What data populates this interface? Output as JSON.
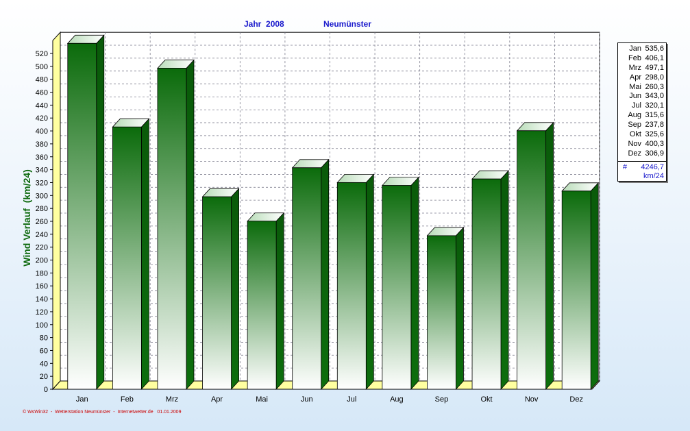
{
  "header": {
    "year_label": "Jahr  2008",
    "station": "Neumünster"
  },
  "footer_text": "© WsWin32  -  Wetterstation Neumünster  -  Internetwetter.de   01.01.2009",
  "legend": {
    "total_symbol": "#",
    "total_value": "4246,7",
    "unit": "km/24",
    "rows": [
      {
        "month": "Jan",
        "value": "535,6"
      },
      {
        "month": "Feb",
        "value": "406,1"
      },
      {
        "month": "Mrz",
        "value": "497,1"
      },
      {
        "month": "Apr",
        "value": "298,0"
      },
      {
        "month": "Mai",
        "value": "260,3"
      },
      {
        "month": "Jun",
        "value": "343,0"
      },
      {
        "month": "Jul",
        "value": "320,1"
      },
      {
        "month": "Aug",
        "value": "315,6"
      },
      {
        "month": "Sep",
        "value": "237,8"
      },
      {
        "month": "Okt",
        "value": "325,6"
      },
      {
        "month": "Nov",
        "value": "400,3"
      },
      {
        "month": "Dez",
        "value": "306,9"
      }
    ]
  },
  "chart_data": {
    "type": "bar",
    "title": "Jahr  2008   Neumünster",
    "xlabel": "",
    "ylabel": "Wind Verlauf  (km/24)",
    "categories": [
      "Jan",
      "Feb",
      "Mrz",
      "Apr",
      "Mai",
      "Jun",
      "Jul",
      "Aug",
      "Sep",
      "Okt",
      "Nov",
      "Dez"
    ],
    "values": [
      535.6,
      406.1,
      497.1,
      298.0,
      260.3,
      343.0,
      320.1,
      315.6,
      237.8,
      325.6,
      400.3,
      306.9
    ],
    "ylim": [
      0,
      540
    ],
    "yticks": [
      0,
      20,
      40,
      60,
      80,
      100,
      120,
      140,
      160,
      180,
      200,
      220,
      240,
      260,
      280,
      300,
      320,
      340,
      360,
      380,
      400,
      420,
      440,
      460,
      480,
      500,
      520
    ],
    "grid": true,
    "legend_position": "right",
    "colors": {
      "bar_top": "#0b6b0b",
      "bar_bottom": "#ffffff",
      "bar_side": "#0a560a",
      "bar_cap": "#dff0df",
      "wall_accent": "#ffff80",
      "grid": "#7a7a8a",
      "title": "#1a1acc",
      "ylabel": "#0e6a0e"
    }
  }
}
